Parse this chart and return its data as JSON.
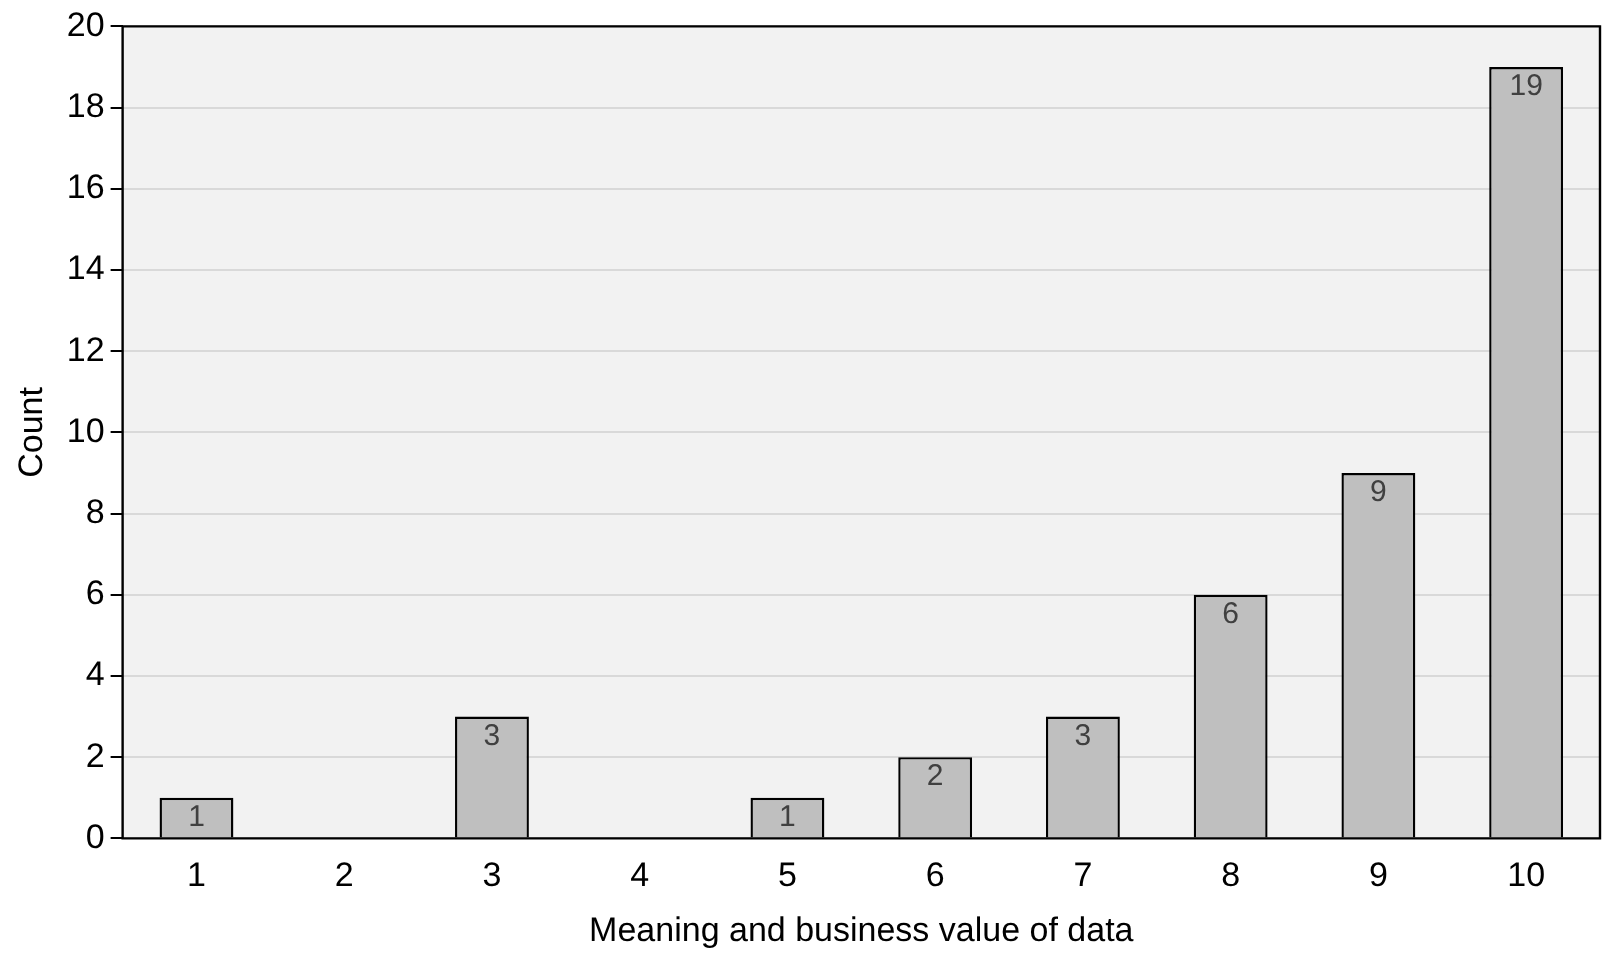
{
  "chart_data": {
    "type": "bar",
    "xlabel": "Meaning and business value of data",
    "ylabel": "Count",
    "categories": [
      "1",
      "2",
      "3",
      "4",
      "5",
      "6",
      "7",
      "8",
      "9",
      "10"
    ],
    "values": [
      1,
      0,
      3,
      0,
      1,
      2,
      3,
      6,
      9,
      19
    ],
    "value_labels": [
      "1",
      null,
      "3",
      null,
      "1",
      "2",
      "3",
      "6",
      "9",
      "19"
    ],
    "color": "#bfbfbf",
    "ylim": [
      0,
      20
    ],
    "yticks": [
      0,
      2,
      4,
      6,
      8,
      10,
      12,
      14,
      16,
      18,
      20
    ],
    "grid": "y",
    "legend": false
  }
}
